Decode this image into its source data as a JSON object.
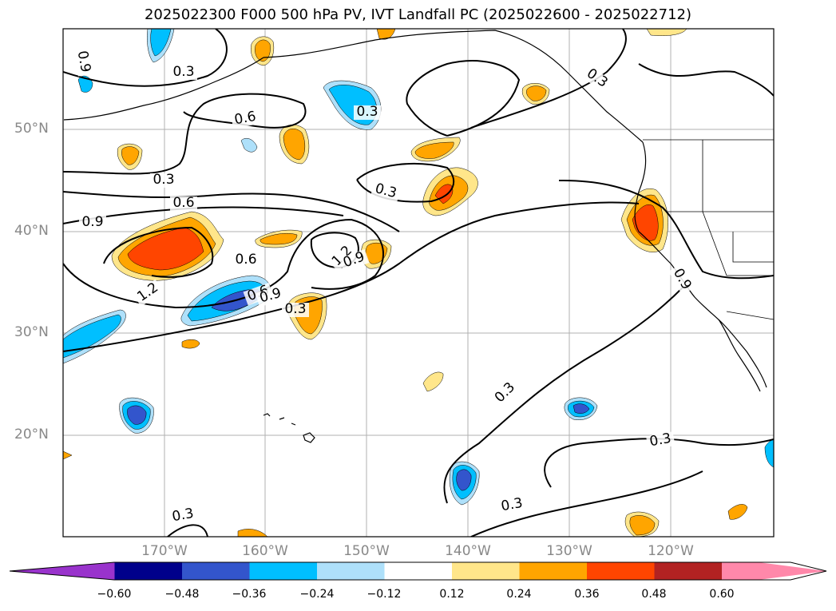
{
  "title": "2025022300 F000 500 hPa PV, IVT Landfall PC (2025022600 - 2025022712)",
  "lat_labels": [
    "50°N",
    "40°N",
    "30°N",
    "20°N"
  ],
  "lon_labels": [
    "170°W",
    "160°W",
    "150°W",
    "140°W",
    "130°W",
    "120°W"
  ],
  "contour_labels": [
    "0.9",
    "0.3",
    "0.6",
    "0.3",
    "0.6",
    "0.3",
    "0.3",
    "0.6",
    "0.9",
    "0.6",
    "1.2",
    "0.9",
    "1.2",
    "0.9",
    "0.9",
    "0.3",
    "0.3",
    "0.3",
    "0.3",
    "0.3",
    "0.3"
  ],
  "colorbar": {
    "ticks": [
      "−0.60",
      "−0.48",
      "−0.36",
      "−0.24",
      "−0.12",
      "0.12",
      "0.24",
      "0.36",
      "0.48",
      "0.60"
    ],
    "colors": [
      "#9933cc",
      "#00008b",
      "#3355cc",
      "#00bfff",
      "#aee0fa",
      "#ffffff",
      "#ffe68a",
      "#ffa500",
      "#ff4500",
      "#b22222",
      "#ff88aa"
    ]
  },
  "colors": {
    "neg_light": "#aee0fa",
    "neg_mid": "#00bfff",
    "neg_strong": "#3355cc",
    "pos_light": "#ffe68a",
    "pos_mid": "#ffa500",
    "pos_strong": "#ff4500"
  }
}
